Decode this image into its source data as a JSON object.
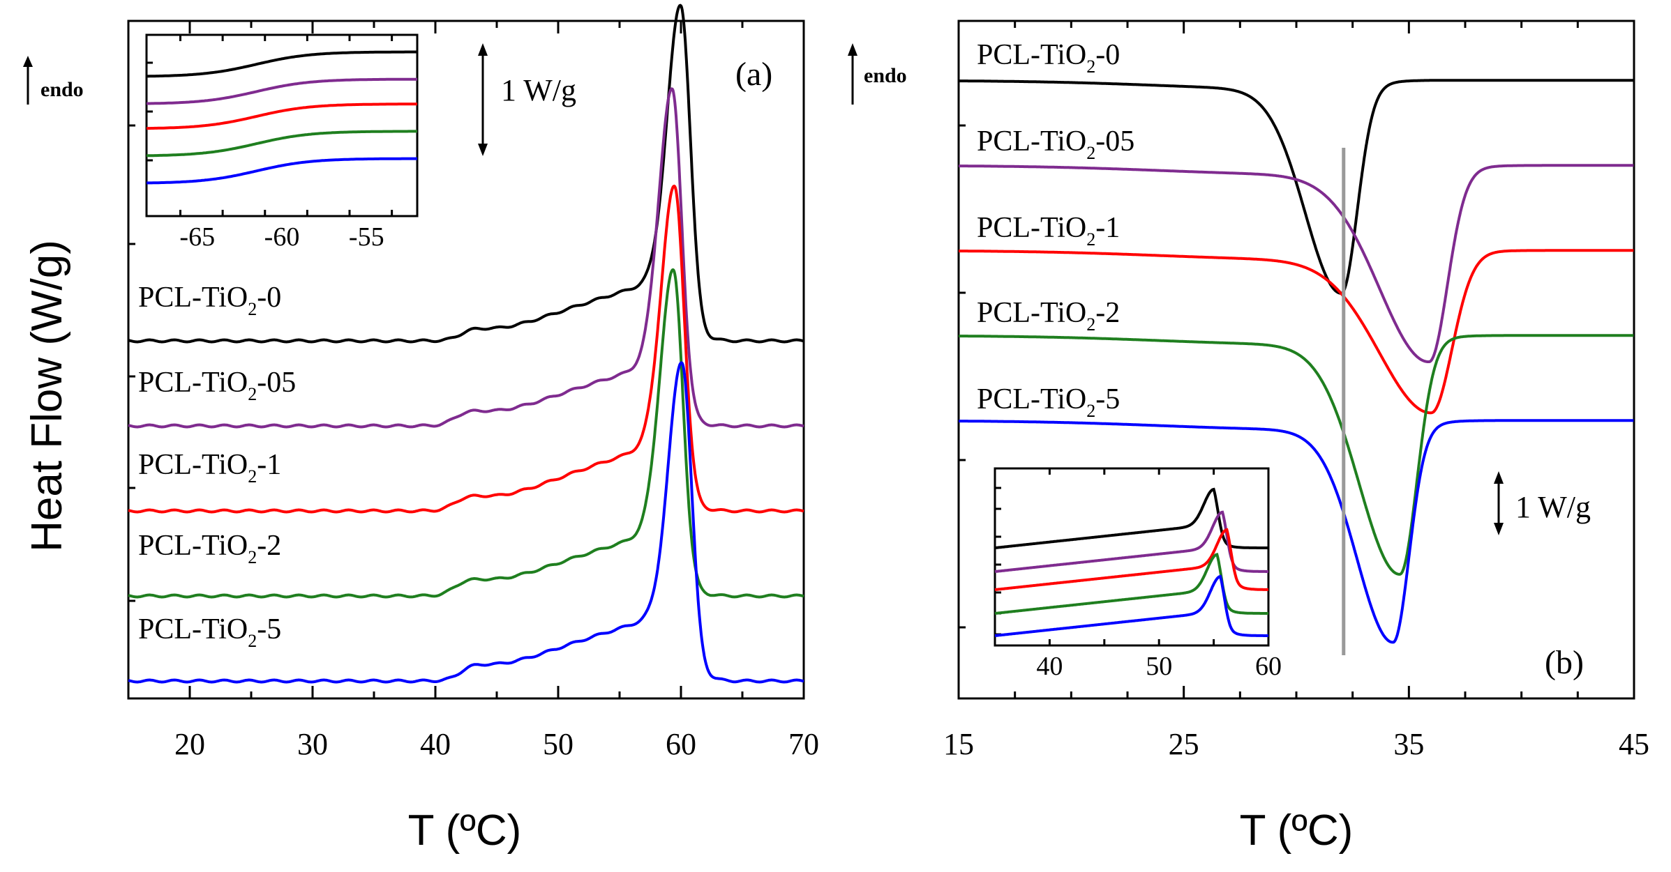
{
  "figure": {
    "y_axis_label": "Heat Flow (W/g)",
    "x_axis_label": "T (ºC)",
    "endo_label": "endo",
    "scale_label": "1 W/g",
    "sub_label": "2"
  },
  "chart_data": [
    {
      "type": "line",
      "panel": "(a)",
      "xlabel": "T (ºC)",
      "ylabel": "Heat Flow (W/g)",
      "xlim": [
        15,
        70
      ],
      "xticks": [
        20,
        30,
        40,
        50,
        60,
        70
      ],
      "ylim": [
        -0.3,
        7.2
      ],
      "grid": false,
      "scale_bar": {
        "label": "1 W/g",
        "value_wg": 1
      },
      "series": [
        {
          "name": "PCL-TiO2-0",
          "label_prefix": "PCL-TiO",
          "label_suffix": "-0",
          "color": "#000000",
          "baseline": 4.0,
          "glass_step": 0.15,
          "glass_t": 42.0,
          "pre_melt_rise": 0.55,
          "peak_t": 60.0,
          "peak_height": 3.25,
          "end_level": 4.0
        },
        {
          "name": "PCL-TiO2-05",
          "label_prefix": "PCL-TiO",
          "label_suffix": "-05",
          "color": "#7f2b8f",
          "baseline": 3.0,
          "glass_step": 0.18,
          "glass_t": 41.5,
          "pre_melt_rise": 0.55,
          "peak_t": 59.3,
          "peak_height": 3.25,
          "end_level": 3.0
        },
        {
          "name": "PCL-TiO2-1",
          "label_prefix": "PCL-TiO",
          "label_suffix": "-1",
          "color": "#ff0000",
          "baseline": 2.0,
          "glass_step": 0.18,
          "glass_t": 41.5,
          "pre_melt_rise": 0.6,
          "peak_t": 59.5,
          "peak_height": 3.05,
          "end_level": 2.0
        },
        {
          "name": "PCL-TiO2-2",
          "label_prefix": "PCL-TiO",
          "label_suffix": "-2",
          "color": "#1f7f1f",
          "baseline": 1.0,
          "glass_step": 0.2,
          "glass_t": 41.5,
          "pre_melt_rise": 0.55,
          "peak_t": 59.4,
          "peak_height": 3.1,
          "end_level": 1.0
        },
        {
          "name": "PCL-TiO2-5",
          "label_prefix": "PCL-TiO",
          "label_suffix": "-5",
          "color": "#0000ff",
          "baseline": 0.0,
          "glass_step": 0.2,
          "glass_t": 42.0,
          "pre_melt_rise": 0.55,
          "peak_t": 60.1,
          "peak_height": 3.0,
          "end_level": 0.0
        }
      ],
      "inset": {
        "xlim": [
          -68,
          -52
        ],
        "xticks": [
          -65,
          -60,
          -55
        ],
        "description_series_offsets": [
          1.0,
          0.78,
          0.58,
          0.36,
          0.14
        ],
        "step_center": -61.5,
        "step_height": 0.2
      }
    },
    {
      "type": "line",
      "panel": "(b)",
      "xlabel": "T (ºC)",
      "xlim": [
        15,
        45
      ],
      "xticks": [
        15,
        25,
        35,
        45
      ],
      "ylim": [
        -2.2,
        5.5
      ],
      "grid": false,
      "reference_line_t": 32.1,
      "scale_bar": {
        "label": "1 W/g",
        "value_wg": 1
      },
      "series": [
        {
          "name": "PCL-TiO2-0",
          "label_prefix": "PCL-TiO",
          "label_suffix": "-0",
          "color": "#000000",
          "start_level": 4.0,
          "end_level": 4.0,
          "peak_t": 32.0,
          "peak_depth": 2.4,
          "sigma_left": 1.6,
          "sigma_right": 0.7
        },
        {
          "name": "PCL-TiO2-05",
          "label_prefix": "PCL-TiO",
          "label_suffix": "-05",
          "color": "#7f2b8f",
          "start_level": 3.0,
          "end_level": 3.0,
          "peak_t": 35.9,
          "peak_depth": 2.2,
          "sigma_left": 2.2,
          "sigma_right": 0.8
        },
        {
          "name": "PCL-TiO2-1",
          "label_prefix": "PCL-TiO",
          "label_suffix": "-1",
          "color": "#ff0000",
          "start_level": 2.0,
          "end_level": 2.0,
          "peak_t": 36.0,
          "peak_depth": 1.8,
          "sigma_left": 2.3,
          "sigma_right": 0.9
        },
        {
          "name": "PCL-TiO2-2",
          "label_prefix": "PCL-TiO",
          "label_suffix": "-2",
          "color": "#1f7f1f",
          "start_level": 1.0,
          "end_level": 1.0,
          "peak_t": 34.6,
          "peak_depth": 2.7,
          "sigma_left": 1.8,
          "sigma_right": 0.75
        },
        {
          "name": "PCL-TiO2-5",
          "label_prefix": "PCL-TiO",
          "label_suffix": "-5",
          "color": "#0000ff",
          "start_level": 0.0,
          "end_level": 0.0,
          "peak_t": 34.3,
          "peak_depth": 2.5,
          "sigma_left": 1.6,
          "sigma_right": 0.7
        }
      ],
      "inset": {
        "xlim": [
          35,
          60
        ],
        "xticks": [
          40,
          50,
          60
        ],
        "peak_positions_t": [
          55.0,
          55.8,
          56.2,
          55.3,
          55.6
        ]
      }
    }
  ]
}
